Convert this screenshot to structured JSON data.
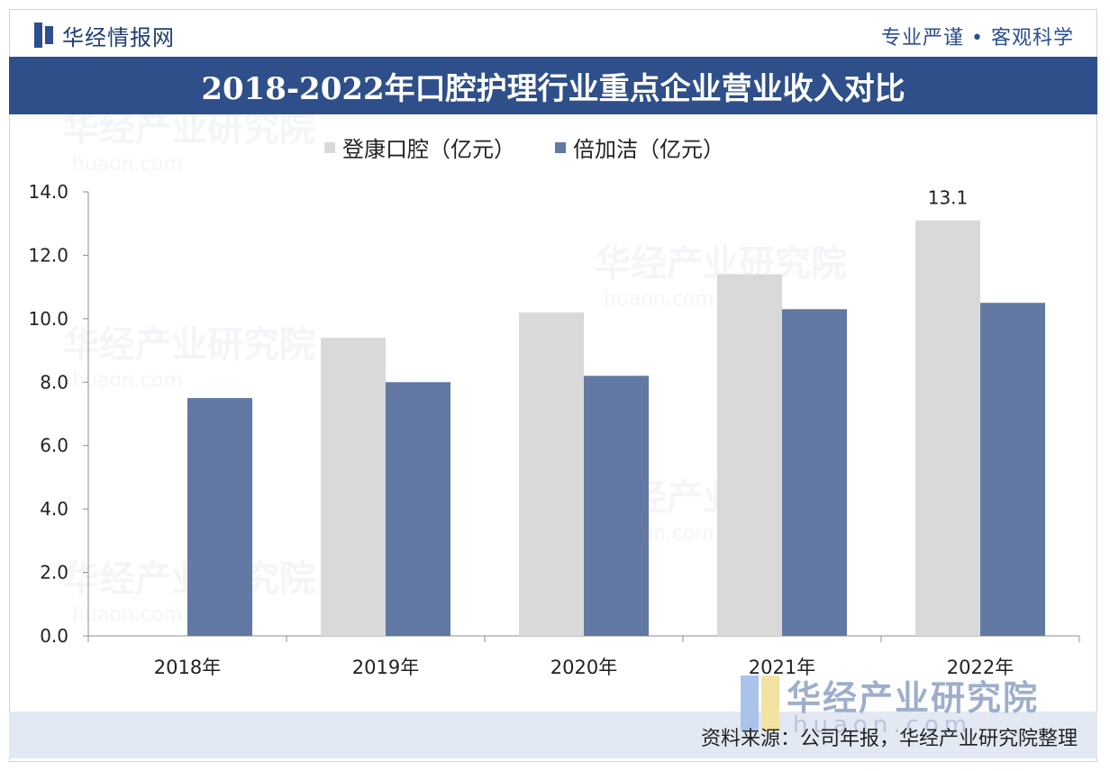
{
  "header": {
    "logo_text": "华经情报网",
    "motto": "专业严谨 • 客观科学",
    "title": "2018-2022年口腔护理行业重点企业营业收入对比"
  },
  "watermark": {
    "brand": "华经产业研究院",
    "url": "huaon.com"
  },
  "footer": {
    "source": "资料来源：公司年报，华经产业研究院整理"
  },
  "colors": {
    "banner": "#2e4f8a",
    "series_1": "#d9d9d9",
    "series_2": "#6279a3"
  },
  "chart_data": {
    "type": "bar",
    "title": "2018-2022年口腔护理行业重点企业营业收入对比",
    "categories": [
      "2018年",
      "2019年",
      "2020年",
      "2021年",
      "2022年"
    ],
    "series": [
      {
        "name": "登康口腔（亿元）",
        "values": [
          null,
          9.4,
          10.2,
          11.4,
          13.1
        ]
      },
      {
        "name": "倍加洁（亿元）",
        "values": [
          7.5,
          8.0,
          8.2,
          10.3,
          10.5
        ]
      }
    ],
    "ylim": [
      0,
      14
    ],
    "yticks": [
      "0.0",
      "2.0",
      "4.0",
      "6.0",
      "8.0",
      "10.0",
      "12.0",
      "14.0"
    ],
    "data_labels": [
      {
        "series": 0,
        "category": 4,
        "text": "13.1"
      }
    ],
    "xlabel": "",
    "ylabel": "",
    "legend_position": "top"
  }
}
